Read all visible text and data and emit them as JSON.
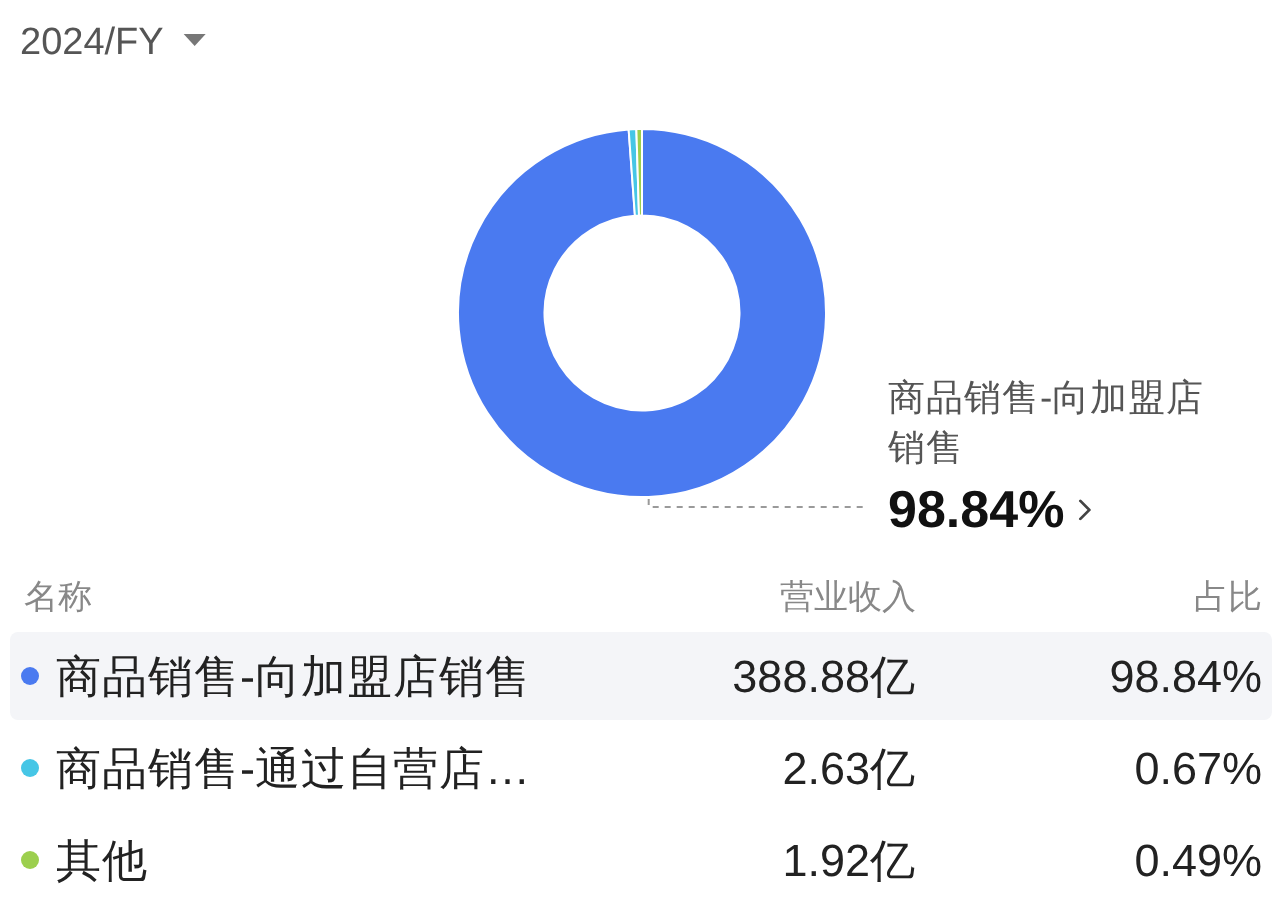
{
  "chart_data": {
    "type": "donut",
    "title": "2024/FY",
    "categories": [
      "商品销售-向加盟店销售",
      "商品销售-通过自营店…",
      "其他"
    ],
    "values": [
      388.88,
      2.63,
      1.92
    ],
    "colors": [
      "#4a7af0",
      "#46c6e6",
      "#9ccf4e"
    ],
    "value_labels": [
      "388.88亿",
      "2.63亿",
      "1.92亿"
    ],
    "legend": "bottom",
    "legend_title": "名称",
    "annotations": [
      "营业收入",
      "占比",
      {
        "text": "98.84%",
        "x": "商品销售-向加盟店销售"
      },
      {
        "text": "0.67%",
        "x": "商品销售-通过自营店…"
      },
      {
        "text": "0.49%",
        "x": "其他"
      },
      {
        "text": "98.84%",
        "x": "商品销售-向加盟店销售"
      }
    ]
  }
}
